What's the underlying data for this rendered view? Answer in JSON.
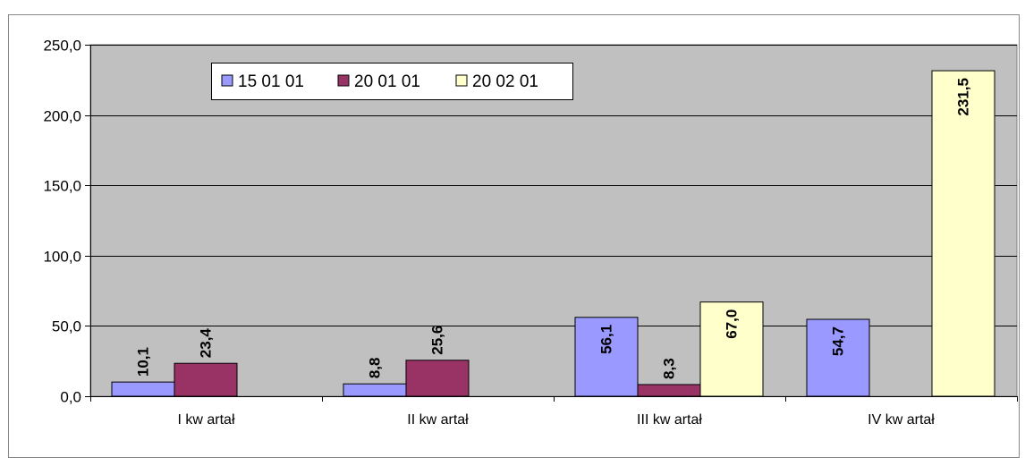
{
  "chart_data": {
    "type": "bar",
    "categories": [
      "I kw artał",
      "II kw artał",
      "III kw artał",
      "IV kw artał"
    ],
    "series": [
      {
        "name": "15 01 01",
        "values": [
          10.1,
          8.8,
          56.1,
          54.7
        ],
        "labels": [
          "10,1",
          "8,8",
          "56,1",
          "54,7"
        ],
        "color": "#9999FF"
      },
      {
        "name": "20 01 01",
        "values": [
          23.4,
          25.6,
          8.3,
          null
        ],
        "labels": [
          "23,4",
          "25,6",
          "8,3",
          ""
        ],
        "color": "#993366"
      },
      {
        "name": "20 02 01",
        "values": [
          null,
          null,
          67.0,
          231.5
        ],
        "labels": [
          "",
          "",
          "67,0",
          "231,5"
        ],
        "color": "#FFFFCC"
      }
    ],
    "y_ticks": [
      "0,0",
      "50,0",
      "100,0",
      "150,0",
      "200,0",
      "250,0"
    ],
    "y_tick_values": [
      0,
      50,
      100,
      150,
      200,
      250
    ],
    "ylim": [
      0,
      250
    ],
    "grid": true,
    "plot_background": "#C0C0C0",
    "legend_position": "top-left",
    "title": "",
    "xlabel": "",
    "ylabel": ""
  }
}
